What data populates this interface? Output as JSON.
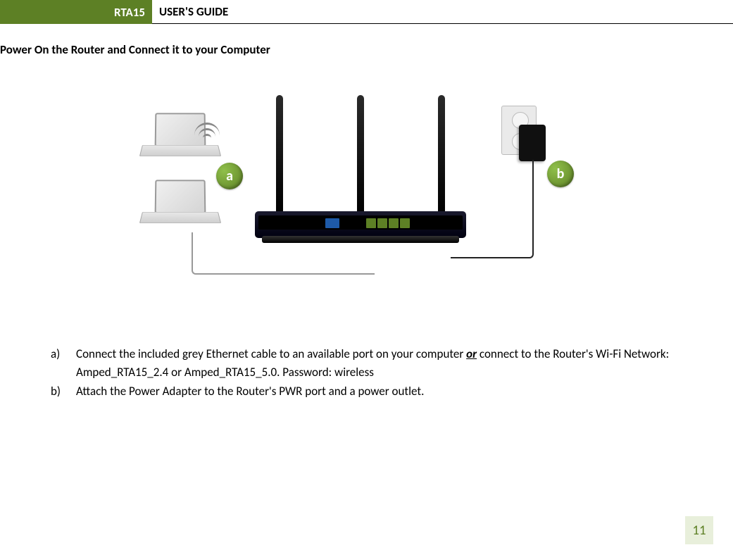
{
  "header": {
    "tab": "RTA15",
    "title": "USER'S GUIDE",
    "tab_bg": "#5d8025",
    "tab_fg": "#ffffff"
  },
  "section_title": "Power On the Router and Connect it to your Computer",
  "diagram": {
    "badge_a": "a",
    "badge_b": "b",
    "badge_bg": "#5d8025",
    "badge_fg": "#ffffff"
  },
  "steps": {
    "a": {
      "letter": "a)",
      "pre": "Connect the included grey Ethernet cable to an available port on your computer ",
      "or": "or",
      "post": " connect to the Router's Wi-Fi Network: Amped_RTA15_2.4 or Amped_RTA15_5.0. Password: wireless"
    },
    "b": {
      "letter": "b)",
      "text": "Attach the Power Adapter to the Router's PWR port and a power outlet."
    }
  },
  "page_number": "11",
  "page_number_bg": "#e8efdb",
  "page_number_fg": "#5d8025"
}
